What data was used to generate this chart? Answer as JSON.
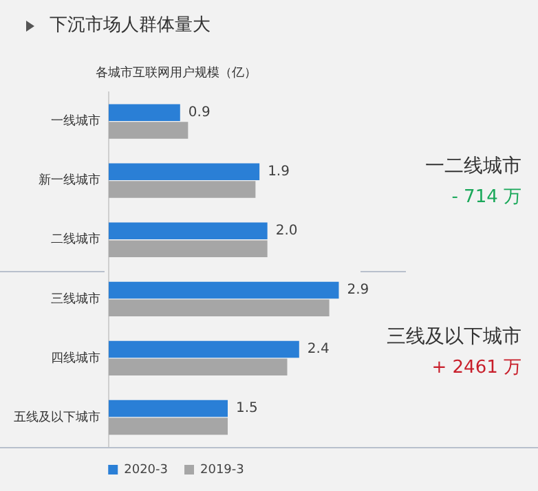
{
  "chart_data": {
    "type": "bar",
    "orientation": "horizontal",
    "subtitle": "下沉市场人群体量大",
    "title": "各城市互联网用户规模（亿）",
    "categories": [
      "一线城市",
      "新一线城市",
      "二线城市",
      "三线城市",
      "四线城市",
      "五线及以下城市"
    ],
    "series": [
      {
        "name": "2020-3",
        "color": "#2a7fd6",
        "values": [
          0.9,
          1.9,
          2.0,
          2.9,
          2.4,
          1.5
        ],
        "value_labels": [
          "0.9",
          "1.9",
          "2.0",
          "2.9",
          "2.4",
          "1.5"
        ]
      },
      {
        "name": "2019-3",
        "color": "#a6a6a6",
        "values": [
          1.0,
          1.85,
          2.0,
          2.78,
          2.25,
          1.5
        ]
      }
    ],
    "tick_labels": "y",
    "grid": false,
    "legend": "bottom",
    "annotations": [
      "一二线城市",
      "- 714 万",
      "三线及以下城市",
      "+ 2461 万"
    ]
  }
}
